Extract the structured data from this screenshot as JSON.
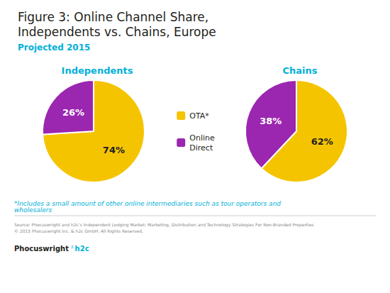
{
  "chart_data": {
    "type": "pie",
    "title": "Figure 3: Online Channel Share,\nIndependents vs. Chains, Europe",
    "subtitle": "Projected 2015",
    "categories": [
      "OTA*",
      "Online\nDirect"
    ],
    "colors": [
      "#f5c400",
      "#9b26af"
    ],
    "series": [
      {
        "name": "Independents",
        "values": [
          74,
          26
        ],
        "value_labels": [
          "74%",
          "26%"
        ]
      },
      {
        "name": "Chains",
        "values": [
          62,
          38
        ],
        "value_labels": [
          "62%",
          "38%"
        ]
      }
    ],
    "data_labels": true,
    "legend": "center",
    "annotations": [
      "*Includes a small amount of other online intermediaries such as tour operators and wholesalers",
      "Source: Phocuswright and h2c’s Independent Lodging Market: Marketing, Distribution and Technology Strategies For Non-Branded Properties\n© 2015 Phocuswright Inc. & h2c GmbH. All Rights Reserved.",
      "Phocuswright",
      "²",
      "h2c"
    ]
  }
}
